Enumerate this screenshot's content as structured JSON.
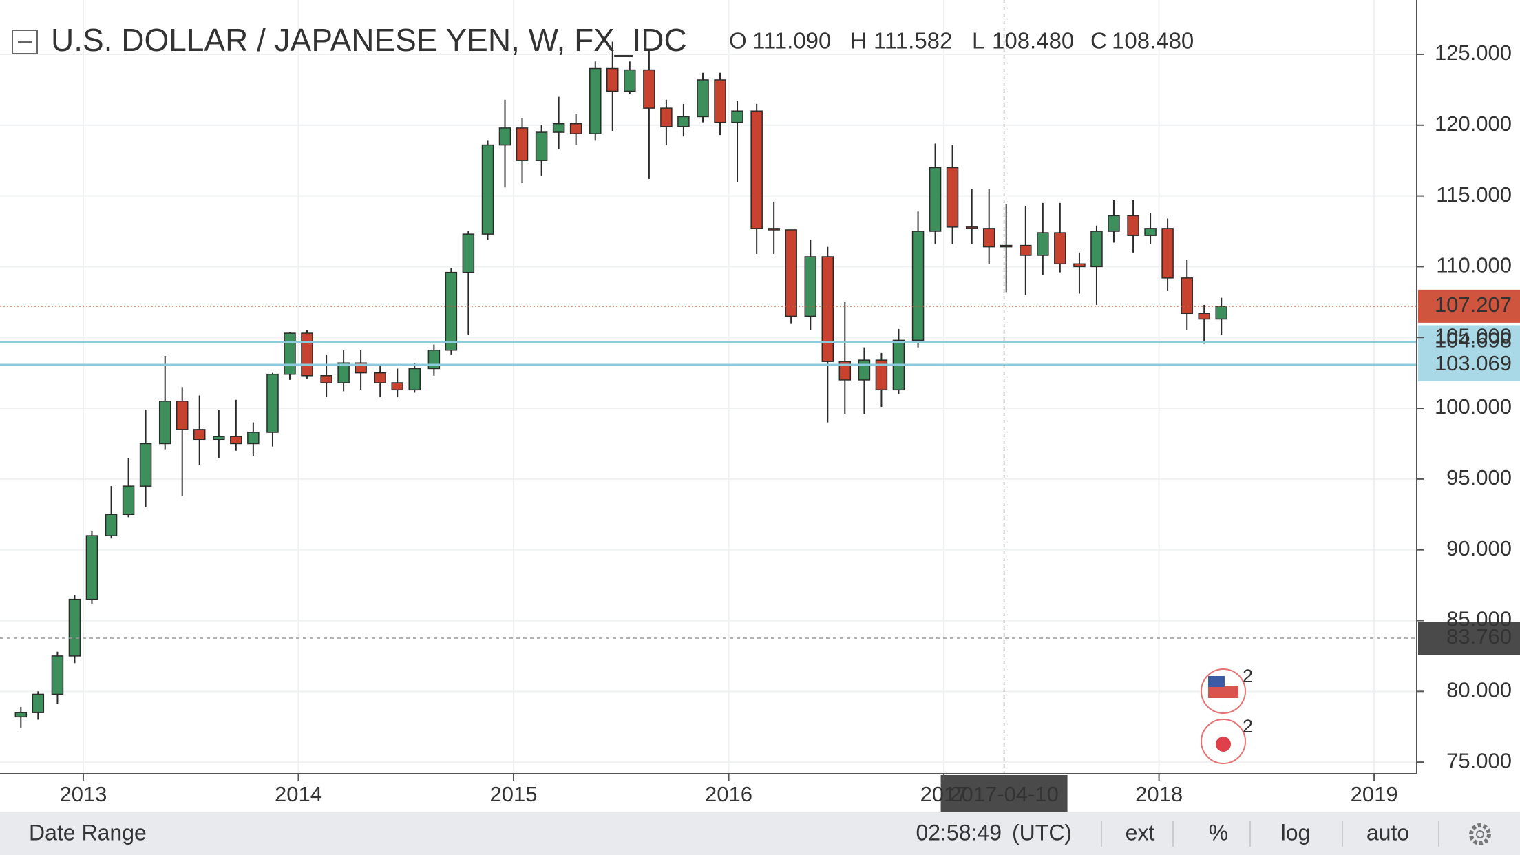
{
  "chart_data": {
    "type": "candlestick",
    "title": "U.S. DOLLAR / JAPANESE YEN, W, FX_IDC",
    "ohlc_legend": [
      {
        "key": "O",
        "value": "111.090"
      },
      {
        "key": "H",
        "value": "111.582"
      },
      {
        "key": "L",
        "value": "108.480"
      },
      {
        "key": "C",
        "value": "108.480"
      }
    ],
    "up_color": "#3d8f5c",
    "down_color": "#c8432f",
    "x": [
      2012.71,
      2012.79,
      2012.88,
      2012.96,
      2013.04,
      2013.13,
      2013.21,
      2013.29,
      2013.38,
      2013.46,
      2013.54,
      2013.63,
      2013.71,
      2013.79,
      2013.88,
      2013.96,
      2014.04,
      2014.13,
      2014.21,
      2014.29,
      2014.38,
      2014.46,
      2014.54,
      2014.63,
      2014.71,
      2014.79,
      2014.88,
      2014.96,
      2015.04,
      2015.13,
      2015.21,
      2015.29,
      2015.38,
      2015.46,
      2015.54,
      2015.63,
      2015.71,
      2015.79,
      2015.88,
      2015.96,
      2016.04,
      2016.13,
      2016.21,
      2016.29,
      2016.38,
      2016.46,
      2016.54,
      2016.63,
      2016.71,
      2016.79,
      2016.88,
      2016.96,
      2017.04,
      2017.13,
      2017.21,
      2017.29,
      2017.38,
      2017.46,
      2017.54,
      2017.63,
      2017.71,
      2017.79,
      2017.88,
      2017.96,
      2018.04,
      2018.13,
      2018.21,
      2018.29
    ],
    "open": [
      78.2,
      78.5,
      79.8,
      82.5,
      86.5,
      91.0,
      92.5,
      94.5,
      97.5,
      100.5,
      98.5,
      97.8,
      98.0,
      97.5,
      98.3,
      102.4,
      105.3,
      102.3,
      101.8,
      103.2,
      102.5,
      101.8,
      101.3,
      102.8,
      104.1,
      109.6,
      112.3,
      118.6,
      119.8,
      117.5,
      119.5,
      120.1,
      119.4,
      124.0,
      122.4,
      123.9,
      121.2,
      119.9,
      120.6,
      123.2,
      120.2,
      121.0,
      112.7,
      112.6,
      106.5,
      110.7,
      103.3,
      102.0,
      103.4,
      101.3,
      104.8,
      112.5,
      117.0,
      112.8,
      112.7,
      111.4,
      111.5,
      110.8,
      112.4,
      110.2,
      110.0,
      112.5,
      113.6,
      112.2,
      112.7,
      109.2,
      106.7,
      106.3
    ],
    "high": [
      78.9,
      80.0,
      82.8,
      86.8,
      91.3,
      94.5,
      96.5,
      99.9,
      103.7,
      101.5,
      100.9,
      99.9,
      100.6,
      99.0,
      102.5,
      105.4,
      105.5,
      103.8,
      104.1,
      104.1,
      103.0,
      102.8,
      103.2,
      104.5,
      109.9,
      112.5,
      118.9,
      121.8,
      120.5,
      120.0,
      122.0,
      120.8,
      124.5,
      125.9,
      124.5,
      125.3,
      121.8,
      121.5,
      123.7,
      123.7,
      121.7,
      121.5,
      114.6,
      112.6,
      111.9,
      111.4,
      107.5,
      104.3,
      103.9,
      105.6,
      113.9,
      118.7,
      118.6,
      115.5,
      115.5,
      114.4,
      114.3,
      114.5,
      114.5,
      111.0,
      112.9,
      114.7,
      114.7,
      113.8,
      113.4,
      110.5,
      107.3,
      107.8
    ],
    "low": [
      77.4,
      78.0,
      79.1,
      82.0,
      86.2,
      90.8,
      92.3,
      93.0,
      97.1,
      93.8,
      96.0,
      96.5,
      97.0,
      96.6,
      97.3,
      102.0,
      102.1,
      100.8,
      101.2,
      101.3,
      100.8,
      100.8,
      101.1,
      102.3,
      103.8,
      105.2,
      111.9,
      115.6,
      115.9,
      116.4,
      118.3,
      118.6,
      118.9,
      119.6,
      122.2,
      116.2,
      118.6,
      119.2,
      120.2,
      119.3,
      116.0,
      110.9,
      110.9,
      106.0,
      105.5,
      99.0,
      99.6,
      99.6,
      100.1,
      101.0,
      104.3,
      111.6,
      111.6,
      111.6,
      110.2,
      108.2,
      108.0,
      109.4,
      109.6,
      108.1,
      107.3,
      111.7,
      111.0,
      111.6,
      108.3,
      105.5,
      104.6,
      105.2
    ],
    "close": [
      78.5,
      79.8,
      82.5,
      86.5,
      91.0,
      92.5,
      94.5,
      97.5,
      100.5,
      98.5,
      97.8,
      98.0,
      97.5,
      98.3,
      102.4,
      105.3,
      102.3,
      101.8,
      103.2,
      102.5,
      101.8,
      101.3,
      102.8,
      104.1,
      109.6,
      112.3,
      118.6,
      119.8,
      117.5,
      119.5,
      120.1,
      119.4,
      124.0,
      122.4,
      123.9,
      121.2,
      119.9,
      120.6,
      123.2,
      120.2,
      121.0,
      112.7,
      112.6,
      106.5,
      110.7,
      103.3,
      102.0,
      103.4,
      101.3,
      104.8,
      112.5,
      117.0,
      112.8,
      112.7,
      111.4,
      111.5,
      110.8,
      112.4,
      110.2,
      110.0,
      112.5,
      113.6,
      112.2,
      112.7,
      109.2,
      106.7,
      106.3,
      107.2
    ],
    "xlim": [
      2012.613,
      2019.198
    ],
    "xticks": [
      2013,
      2014,
      2015,
      2016,
      2017,
      2018,
      2019
    ],
    "ylim": [
      74.18,
      128.84
    ],
    "yticks": [
      {
        "value": 75,
        "label": "75.000"
      },
      {
        "value": 80,
        "label": "80.000"
      },
      {
        "value": 85,
        "label": "85.000"
      },
      {
        "value": 90,
        "label": "90.000"
      },
      {
        "value": 95,
        "label": "95.000"
      },
      {
        "value": 100,
        "label": "100.000"
      },
      {
        "value": 105,
        "label": "105.000"
      },
      {
        "value": 110,
        "label": "110.000"
      },
      {
        "value": 115,
        "label": "115.000"
      },
      {
        "value": 120,
        "label": "120.000"
      },
      {
        "value": 125,
        "label": "125.000"
      }
    ],
    "grid": true,
    "hlines": [
      {
        "value": 104.698,
        "label": "104.698",
        "color": "#8ccbdb"
      },
      {
        "value": 103.069,
        "label": "103.069",
        "color": "#8ccbdb"
      }
    ],
    "last_price": {
      "value": 107.207,
      "label": "107.207",
      "color": "#d0553f"
    },
    "crosshair": {
      "x": 2017.28,
      "x_label": "2017-04-10",
      "y": 83.76,
      "y_label": "83.760"
    },
    "events": [
      {
        "count": 2
      },
      {
        "count": 2
      }
    ],
    "toolbar": {
      "date_range": "Date Range",
      "time": "02:58:49",
      "timezone": "(UTC)",
      "buttons": [
        "ext",
        "%",
        "log",
        "auto"
      ]
    }
  }
}
